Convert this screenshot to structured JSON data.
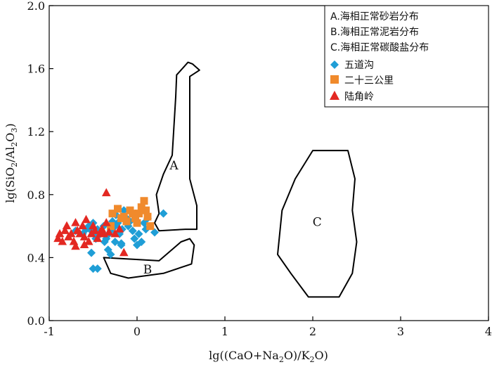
{
  "chart_data": {
    "type": "scatter",
    "xlabel_parts": [
      "lg((CaO+Na",
      "2",
      "O)/K",
      "2",
      "O)"
    ],
    "ylabel_parts": [
      "lg(SiO",
      "2",
      "/Al",
      "2",
      "O",
      "3",
      ")"
    ],
    "xlim": [
      -1,
      4
    ],
    "ylim": [
      0,
      2
    ],
    "xticks": [
      "-1",
      "0",
      "1",
      "2",
      "3",
      "4"
    ],
    "yticks": [
      "0.0",
      "0.4",
      "0.8",
      "1.2",
      "1.6",
      "2.0"
    ],
    "legend_position": "top-right",
    "regions": [
      {
        "label": "A",
        "label_at": [
          0.42,
          0.96
        ],
        "polygon": [
          [
            0.45,
            1.56
          ],
          [
            0.58,
            1.64
          ],
          [
            0.63,
            1.63
          ],
          [
            0.71,
            1.59
          ],
          [
            0.6,
            1.55
          ],
          [
            0.6,
            0.9
          ],
          [
            0.68,
            0.73
          ],
          [
            0.68,
            0.58
          ],
          [
            0.55,
            0.58
          ],
          [
            0.25,
            0.57
          ],
          [
            0.2,
            0.62
          ],
          [
            0.25,
            0.68
          ],
          [
            0.22,
            0.8
          ],
          [
            0.3,
            0.93
          ],
          [
            0.4,
            1.05
          ],
          [
            0.44,
            1.42
          ],
          [
            0.45,
            1.56
          ]
        ]
      },
      {
        "label": "B",
        "label_at": [
          0.12,
          0.3
        ],
        "polygon": [
          [
            -0.38,
            0.4
          ],
          [
            0.25,
            0.38
          ],
          [
            0.5,
            0.5
          ],
          [
            0.6,
            0.52
          ],
          [
            0.65,
            0.48
          ],
          [
            0.62,
            0.36
          ],
          [
            0.3,
            0.3
          ],
          [
            -0.1,
            0.27
          ],
          [
            -0.3,
            0.3
          ],
          [
            -0.38,
            0.4
          ]
        ]
      },
      {
        "label": "C",
        "label_at": [
          2.05,
          0.6
        ],
        "polygon": [
          [
            2.0,
            1.08
          ],
          [
            2.4,
            1.08
          ],
          [
            2.48,
            0.9
          ],
          [
            2.45,
            0.7
          ],
          [
            2.5,
            0.5
          ],
          [
            2.45,
            0.3
          ],
          [
            2.3,
            0.15
          ],
          [
            1.95,
            0.15
          ],
          [
            1.75,
            0.3
          ],
          [
            1.6,
            0.42
          ],
          [
            1.65,
            0.7
          ],
          [
            1.8,
            0.9
          ],
          [
            2.0,
            1.08
          ]
        ]
      }
    ],
    "series": [
      {
        "name": "五道沟",
        "marker": "diamond",
        "color": "#1f9ed6",
        "points": [
          [
            -0.7,
            0.57
          ],
          [
            -0.62,
            0.55
          ],
          [
            -0.58,
            0.58
          ],
          [
            -0.55,
            0.6
          ],
          [
            -0.52,
            0.57
          ],
          [
            -0.5,
            0.62
          ],
          [
            -0.48,
            0.55
          ],
          [
            -0.47,
            0.52
          ],
          [
            -0.45,
            0.58
          ],
          [
            -0.42,
            0.55
          ],
          [
            -0.4,
            0.56
          ],
          [
            -0.38,
            0.6
          ],
          [
            -0.37,
            0.5
          ],
          [
            -0.35,
            0.52
          ],
          [
            -0.33,
            0.45
          ],
          [
            -0.32,
            0.55
          ],
          [
            -0.3,
            0.57
          ],
          [
            -0.28,
            0.63
          ],
          [
            -0.25,
            0.6
          ],
          [
            -0.24,
            0.67
          ],
          [
            -0.22,
            0.62
          ],
          [
            -0.2,
            0.55
          ],
          [
            -0.18,
            0.49
          ],
          [
            -0.17,
            0.58
          ],
          [
            -0.15,
            0.7
          ],
          [
            -0.12,
            0.65
          ],
          [
            -0.1,
            0.6
          ],
          [
            -0.08,
            0.63
          ],
          [
            -0.05,
            0.57
          ],
          [
            -0.03,
            0.52
          ],
          [
            0.0,
            0.48
          ],
          [
            0.02,
            0.55
          ],
          [
            0.05,
            0.5
          ],
          [
            0.08,
            0.62
          ],
          [
            0.1,
            0.58
          ],
          [
            0.12,
            0.65
          ],
          [
            0.2,
            0.56
          ],
          [
            0.3,
            0.68
          ],
          [
            -0.5,
            0.33
          ],
          [
            -0.45,
            0.33
          ],
          [
            -0.52,
            0.43
          ],
          [
            -0.3,
            0.42
          ],
          [
            -0.18,
            0.48
          ],
          [
            -0.25,
            0.5
          ]
        ]
      },
      {
        "name": "二十三公里",
        "marker": "square",
        "color": "#f08a2c",
        "points": [
          [
            -0.3,
            0.6
          ],
          [
            -0.28,
            0.68
          ],
          [
            -0.22,
            0.71
          ],
          [
            -0.18,
            0.65
          ],
          [
            -0.15,
            0.66
          ],
          [
            -0.12,
            0.63
          ],
          [
            -0.05,
            0.68
          ],
          [
            -0.02,
            0.65
          ],
          [
            0.0,
            0.62
          ],
          [
            0.02,
            0.68
          ],
          [
            0.05,
            0.72
          ],
          [
            0.08,
            0.76
          ],
          [
            0.1,
            0.7
          ],
          [
            0.12,
            0.66
          ],
          [
            0.15,
            0.6
          ],
          [
            -0.08,
            0.7
          ]
        ]
      },
      {
        "name": "陆角岭",
        "marker": "triangle",
        "color": "#e32822",
        "points": [
          [
            -0.9,
            0.52
          ],
          [
            -0.88,
            0.55
          ],
          [
            -0.85,
            0.5
          ],
          [
            -0.82,
            0.57
          ],
          [
            -0.8,
            0.6
          ],
          [
            -0.78,
            0.53
          ],
          [
            -0.75,
            0.55
          ],
          [
            -0.72,
            0.5
          ],
          [
            -0.7,
            0.62
          ],
          [
            -0.68,
            0.57
          ],
          [
            -0.65,
            0.55
          ],
          [
            -0.62,
            0.6
          ],
          [
            -0.6,
            0.53
          ],
          [
            -0.58,
            0.64
          ],
          [
            -0.55,
            0.5
          ],
          [
            -0.52,
            0.55
          ],
          [
            -0.5,
            0.6
          ],
          [
            -0.48,
            0.57
          ],
          [
            -0.45,
            0.52
          ],
          [
            -0.42,
            0.55
          ],
          [
            -0.4,
            0.58
          ],
          [
            -0.38,
            0.55
          ],
          [
            -0.35,
            0.62
          ],
          [
            -0.32,
            0.56
          ],
          [
            -0.35,
            0.81
          ],
          [
            -0.15,
            0.43
          ],
          [
            -0.7,
            0.47
          ],
          [
            -0.6,
            0.48
          ],
          [
            -0.25,
            0.55
          ],
          [
            -0.2,
            0.58
          ]
        ]
      }
    ],
    "legend_region_items": [
      "A.海相正常砂岩分布",
      "B.海相正常泥岩分布",
      "C.海相正常碳酸盐分布"
    ]
  }
}
